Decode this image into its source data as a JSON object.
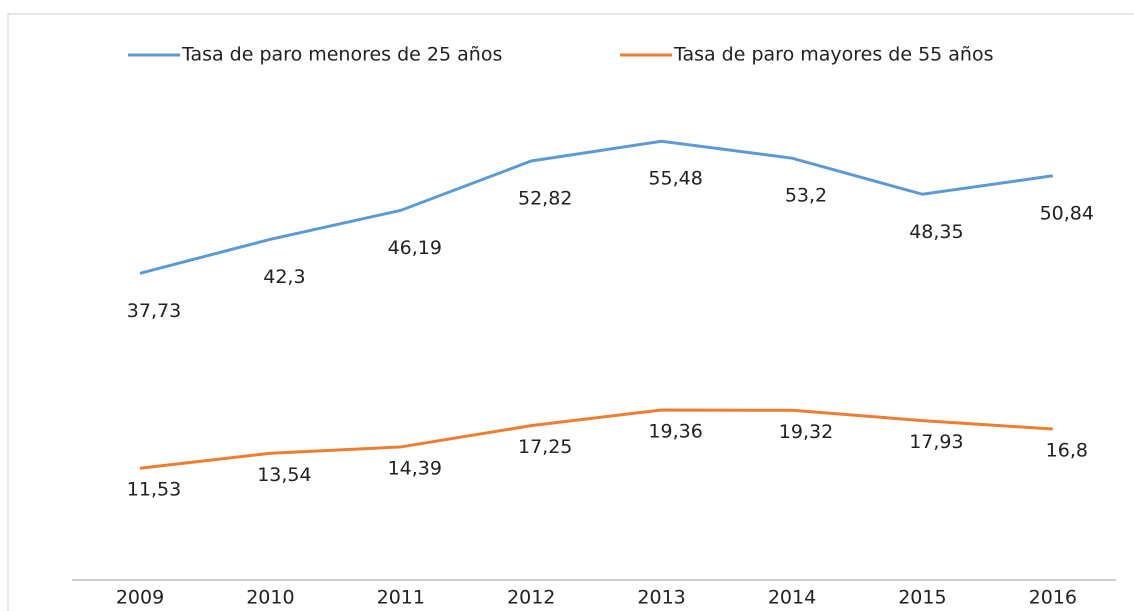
{
  "chart_data": {
    "type": "line",
    "categories": [
      "2009",
      "2010",
      "2011",
      "2012",
      "2013",
      "2014",
      "2015",
      "2016"
    ],
    "series": [
      {
        "name": "Tasa de paro menores de 25 años",
        "color": "#5b9bd5",
        "values": [
          37.73,
          42.3,
          46.19,
          52.82,
          55.48,
          53.2,
          48.35,
          50.84
        ],
        "value_labels": [
          "37,73",
          "42,3",
          "46,19",
          "52,82",
          "55,48",
          "53,2",
          "48,35",
          "50,84"
        ]
      },
      {
        "name": "Tasa de paro mayores de 55 años",
        "color": "#ed7d31",
        "values": [
          11.53,
          13.54,
          14.39,
          17.25,
          19.36,
          19.32,
          17.93,
          16.8
        ],
        "value_labels": [
          "11,53",
          "13,54",
          "14,39",
          "17,25",
          "19,36",
          "19,32",
          "17,93",
          "16,8"
        ]
      }
    ]
  }
}
